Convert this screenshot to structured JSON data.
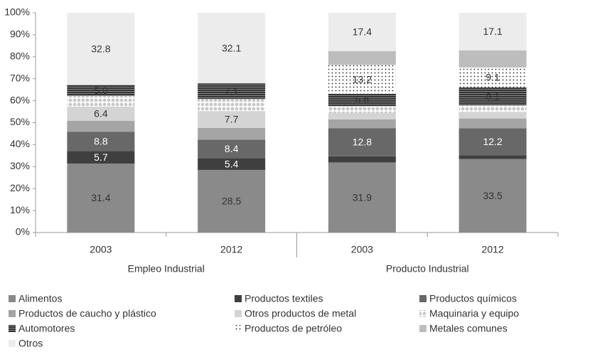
{
  "chart_data": {
    "type": "stacked_bar",
    "categories": [
      "2003",
      "2012",
      "2003",
      "2012"
    ],
    "groups": [
      "Empleo Industrial",
      "Producto Industrial"
    ],
    "ylim": [
      0,
      100
    ],
    "yticks": [
      {
        "value": 0,
        "label": "0%"
      },
      {
        "value": 10,
        "label": "10%"
      },
      {
        "value": 20,
        "label": "20%"
      },
      {
        "value": 30,
        "label": "30%"
      },
      {
        "value": 40,
        "label": "40%"
      },
      {
        "value": 50,
        "label": "50%"
      },
      {
        "value": 60,
        "label": "60%"
      },
      {
        "value": 70,
        "label": "70%"
      },
      {
        "value": 80,
        "label": "80%"
      },
      {
        "value": 90,
        "label": "90%"
      },
      {
        "value": 100,
        "label": "100%"
      }
    ],
    "series": [
      {
        "name": "Alimentos",
        "color": "#8a8a8a",
        "values": [
          31.4,
          28.5,
          31.9,
          33.5
        ],
        "value_labels": [
          "31.4",
          "28.5",
          "31.9",
          "33.5"
        ]
      },
      {
        "name": "Productos textiles",
        "color": "#3f3f3f",
        "values": [
          5.7,
          5.4,
          2.8,
          1.7
        ],
        "value_labels": [
          "5.7",
          "5.4",
          null,
          null
        ]
      },
      {
        "name": "Productos químicos",
        "color": "#686868",
        "values": [
          8.8,
          8.4,
          12.8,
          12.2
        ],
        "value_labels": [
          "8.8",
          "8.4",
          "12.8",
          "12.2"
        ]
      },
      {
        "name": "Productos de caucho y plástico",
        "color": "#a5a5a5",
        "values": [
          5.0,
          5.3,
          4.0,
          4.5
        ],
        "value_labels": [
          null,
          null,
          null,
          null
        ]
      },
      {
        "name": "Otros productos de metal",
        "color": "#d4d4d4",
        "values": [
          6.4,
          7.7,
          3.0,
          3.0
        ],
        "value_labels": [
          "6.4",
          "7.7",
          null,
          null
        ]
      },
      {
        "name": "Maquinaria y equipo",
        "color": "#c8c8c8",
        "pattern": "circles",
        "values": [
          4.9,
          5.5,
          3.0,
          3.0
        ],
        "value_labels": [
          null,
          null,
          null,
          null
        ]
      },
      {
        "name": "Automotores",
        "color": "#333333",
        "pattern": "stripes",
        "values": [
          5.0,
          7.1,
          5.6,
          8.1
        ],
        "value_labels": [
          "5.0",
          "7.1",
          "5.6",
          "8.1"
        ]
      },
      {
        "name": "Productos de petróleo",
        "color": "#222222",
        "pattern": "dots",
        "values": [
          0,
          0,
          13.2,
          9.1
        ],
        "value_labels": [
          null,
          null,
          "13.2",
          "9.1"
        ]
      },
      {
        "name": "Metales comunes",
        "color": "#bdbdbd",
        "values": [
          0,
          0,
          6.3,
          7.8
        ],
        "value_labels": [
          null,
          null,
          null,
          null
        ]
      },
      {
        "name": "Otros",
        "color": "#ececec",
        "values": [
          32.8,
          32.1,
          17.4,
          17.1
        ],
        "value_labels": [
          "32.8",
          "32.1",
          "17.4",
          "17.1"
        ]
      }
    ]
  }
}
